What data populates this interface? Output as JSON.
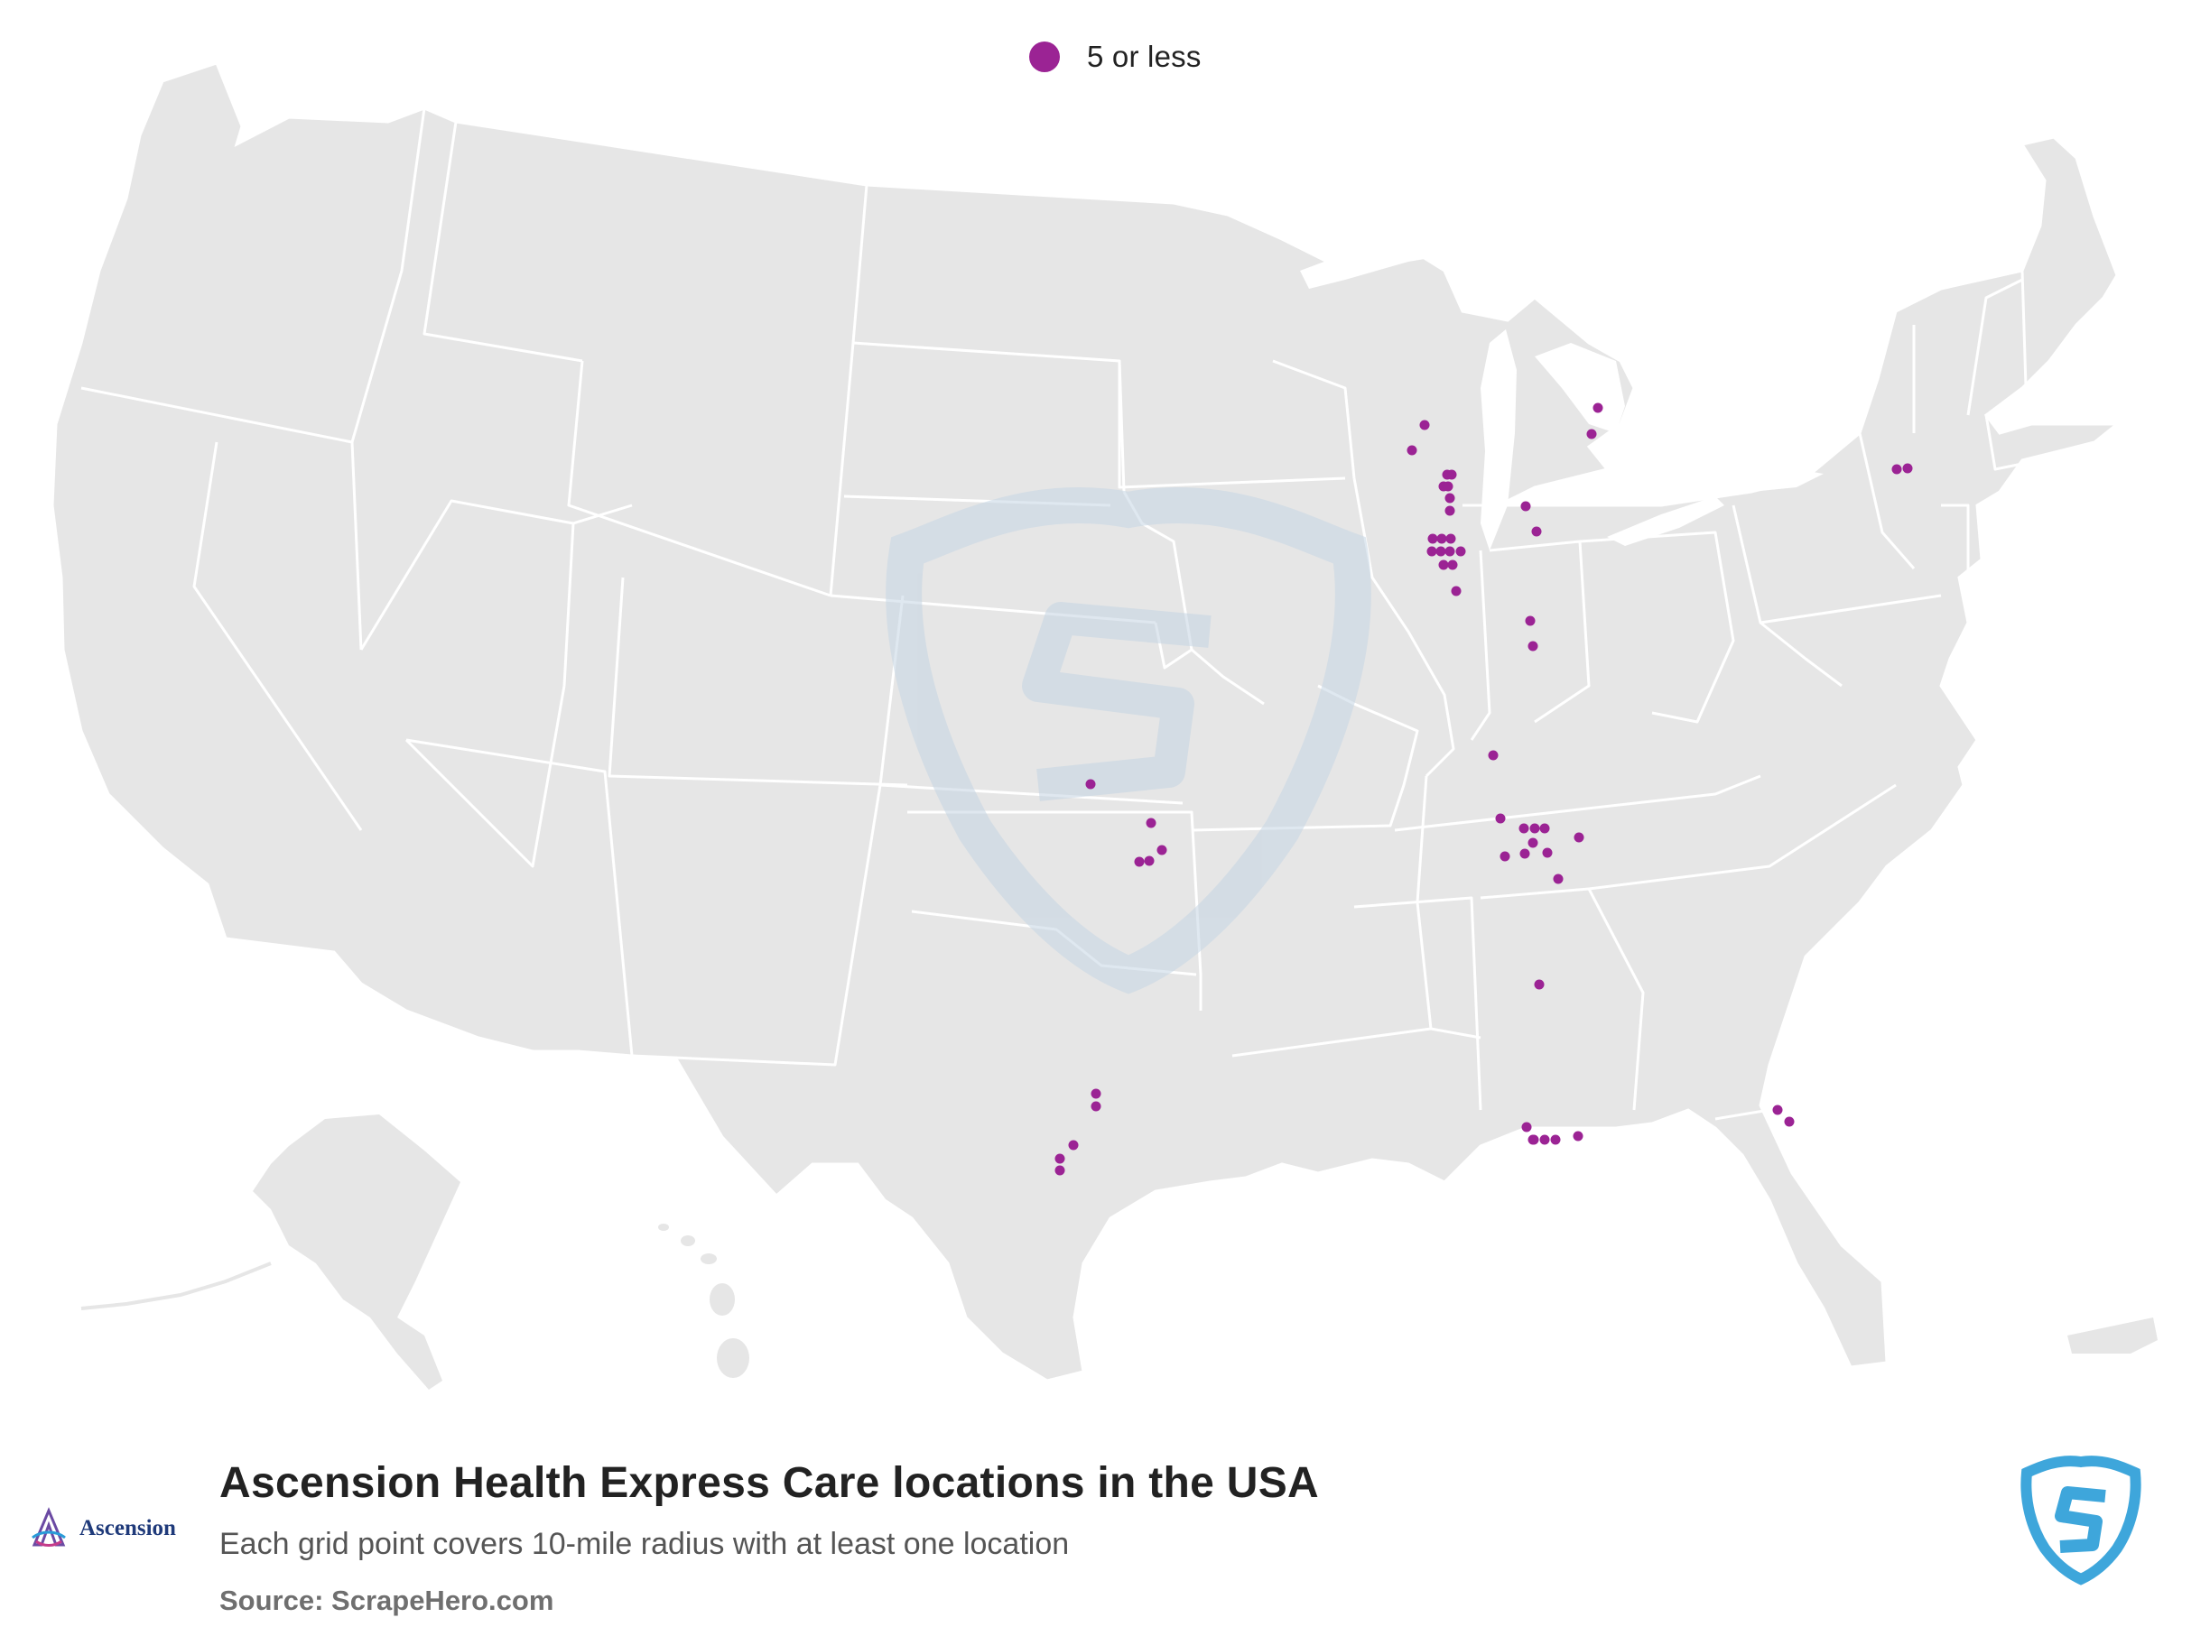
{
  "legend": {
    "label": "5 or less",
    "dot_color": "#9b2394"
  },
  "title": "Ascension Health Express Care locations in the USA",
  "subtitle": "Each grid point covers 10-mile radius with at least one location",
  "source": "Source: ScrapeHero.com",
  "brand": {
    "name": "Ascension",
    "icon": "ascension-logo-icon"
  },
  "provider_logo_icon": "scrapehero-shield-icon",
  "colors": {
    "land": "#e6e6e6",
    "borders": "#ffffff",
    "marker": "#9b2394",
    "watermark": "#c5d5e3",
    "scrapehero_blue": "#3ea6db"
  },
  "map": {
    "region": "Contiguous USA with Alaska and Hawaii insets",
    "location_markers_count": 56
  }
}
